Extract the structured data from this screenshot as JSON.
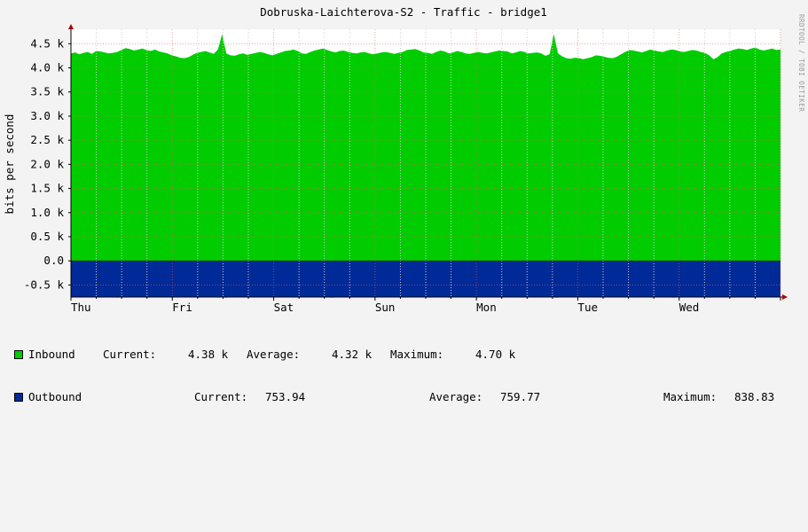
{
  "chart_data": {
    "type": "area",
    "title": "Dobruska-Laichterova-S2 - Traffic - bridge1",
    "ylabel": "bits per second",
    "watermark": "RRDTOOL / TOBI OETIKER",
    "ylim": [
      -750,
      4800
    ],
    "y_ticks": [
      {
        "label": "4.5 k",
        "value": 4500
      },
      {
        "label": "4.0 k",
        "value": 4000
      },
      {
        "label": "3.5 k",
        "value": 3500
      },
      {
        "label": "3.0 k",
        "value": 3000
      },
      {
        "label": "2.5 k",
        "value": 2500
      },
      {
        "label": "2.0 k",
        "value": 2000
      },
      {
        "label": "1.5 k",
        "value": 1500
      },
      {
        "label": "1.0 k",
        "value": 1000
      },
      {
        "label": "0.5 k",
        "value": 500
      },
      {
        "label": "0.0",
        "value": 0
      },
      {
        "label": "-0.5 k",
        "value": -500
      }
    ],
    "x_day_labels": [
      "Thu",
      "Fri",
      "Sat",
      "Sun",
      "Mon",
      "Tue",
      "Wed"
    ],
    "x_range_days": [
      0,
      7.0
    ],
    "grid": true,
    "colors": {
      "inbound": "#00cc00",
      "outbound": "#002a97",
      "grid": "#e06060",
      "minor_grid": "#d0d0d0",
      "canvas": "#ffffff",
      "arrow": "#aa0000"
    },
    "series": [
      {
        "name": "Inbound",
        "direction": "positive",
        "values": [
          4300,
          4320,
          4280,
          4310,
          4330,
          4290,
          4350,
          4340,
          4320,
          4300,
          4310,
          4330,
          4370,
          4410,
          4390,
          4360,
          4380,
          4400,
          4370,
          4350,
          4380,
          4340,
          4320,
          4300,
          4260,
          4240,
          4210,
          4200,
          4220,
          4270,
          4310,
          4330,
          4350,
          4320,
          4290,
          4380,
          4700,
          4300,
          4260,
          4250,
          4280,
          4300,
          4270,
          4290,
          4310,
          4330,
          4310,
          4280,
          4260,
          4290,
          4320,
          4350,
          4360,
          4380,
          4350,
          4300,
          4290,
          4330,
          4360,
          4380,
          4400,
          4370,
          4340,
          4320,
          4350,
          4360,
          4330,
          4310,
          4300,
          4320,
          4330,
          4300,
          4280,
          4300,
          4320,
          4330,
          4310,
          4290,
          4310,
          4330,
          4370,
          4380,
          4390,
          4360,
          4320,
          4310,
          4290,
          4330,
          4360,
          4340,
          4300,
          4320,
          4350,
          4330,
          4300,
          4290,
          4310,
          4330,
          4310,
          4300,
          4320,
          4340,
          4360,
          4350,
          4340,
          4300,
          4320,
          4350,
          4330,
          4300,
          4310,
          4320,
          4300,
          4250,
          4280,
          4700,
          4300,
          4240,
          4200,
          4190,
          4210,
          4200,
          4180,
          4200,
          4220,
          4260,
          4250,
          4230,
          4210,
          4200,
          4230,
          4280,
          4330,
          4370,
          4360,
          4340,
          4320,
          4350,
          4380,
          4360,
          4340,
          4330,
          4360,
          4380,
          4370,
          4340,
          4330,
          4350,
          4370,
          4360,
          4330,
          4310,
          4260,
          4180,
          4220,
          4300,
          4330,
          4350,
          4380,
          4400,
          4390,
          4370,
          4400,
          4420,
          4380,
          4360,
          4380,
          4400,
          4370,
          4380
        ],
        "current": "4.38 k",
        "average": "4.32 k",
        "maximum": "4.70 k"
      },
      {
        "name": "Outbound",
        "direction": "negative",
        "values": [
          755,
          750,
          760,
          752,
          758,
          754,
          750,
          760,
          756,
          752,
          758,
          762,
          750,
          760,
          755,
          757,
          760,
          753,
          758,
          756,
          751,
          759,
          754,
          760,
          755,
          752,
          758,
          754,
          760,
          756,
          752,
          758,
          760,
          754,
          750,
          757,
          762,
          756,
          754,
          759,
          753,
          760,
          756,
          752,
          758,
          754,
          760,
          756,
          751,
          757,
          760,
          753,
          758,
          756,
          751,
          758,
          754,
          760,
          756,
          752,
          758,
          762,
          754,
          750,
          757,
          760,
          755,
          757,
          760,
          753,
          758,
          756,
          751,
          759,
          754,
          760,
          755,
          752,
          758,
          754,
          760,
          756,
          752,
          758,
          760,
          754,
          750,
          757,
          762,
          756,
          754,
          759,
          753,
          760,
          756,
          752,
          758,
          754,
          760,
          756,
          751,
          757,
          760,
          753,
          758,
          756,
          751,
          758,
          754,
          760,
          756,
          752,
          758,
          762,
          754,
          750,
          757,
          760,
          755,
          757,
          760,
          753,
          758,
          756,
          751,
          759,
          754,
          760,
          755,
          752,
          758,
          754,
          760,
          756,
          752,
          758,
          760,
          754,
          750,
          757,
          762,
          756,
          754,
          759,
          753,
          760,
          756,
          752,
          758,
          754,
          760,
          756,
          751,
          757,
          760,
          753,
          758,
          756,
          751,
          758,
          754,
          760,
          756,
          752,
          758,
          754
        ],
        "current": "753.94",
        "average": "759.77",
        "maximum": "838.83"
      }
    ]
  },
  "legend": {
    "current_label": "Current:",
    "average_label": "Average:",
    "maximum_label": "Maximum:"
  }
}
